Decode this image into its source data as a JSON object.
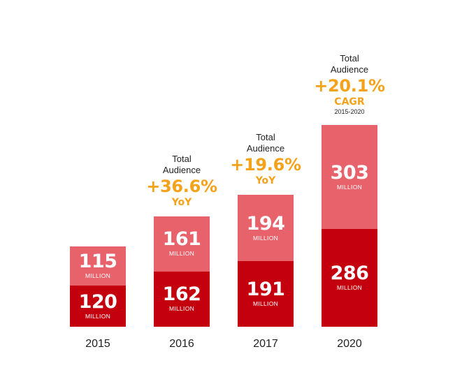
{
  "chart_data": {
    "type": "bar",
    "stacked": true,
    "categories": [
      "2015",
      "2016",
      "2017",
      "2020"
    ],
    "series": [
      {
        "values": [
          120,
          162,
          191,
          286
        ],
        "color": "#c4000f"
      },
      {
        "values": [
          115,
          161,
          194,
          303
        ],
        "color": "#e8626c"
      }
    ],
    "unit_label": "MILLION",
    "annotations": [
      null,
      {
        "title": "Total Audience",
        "value": "+36.6%",
        "kind": "YoY",
        "range": ""
      },
      {
        "title": "Total Audience",
        "value": "+19.6%",
        "kind": "YoY",
        "range": ""
      },
      {
        "title": "Total Audience",
        "value": "+20.1%",
        "kind": "CAGR",
        "range": "2015-2020"
      }
    ],
    "colors": {
      "annotation": "#f5a21b",
      "text": "#222222"
    },
    "grid": false,
    "legend": "none"
  }
}
